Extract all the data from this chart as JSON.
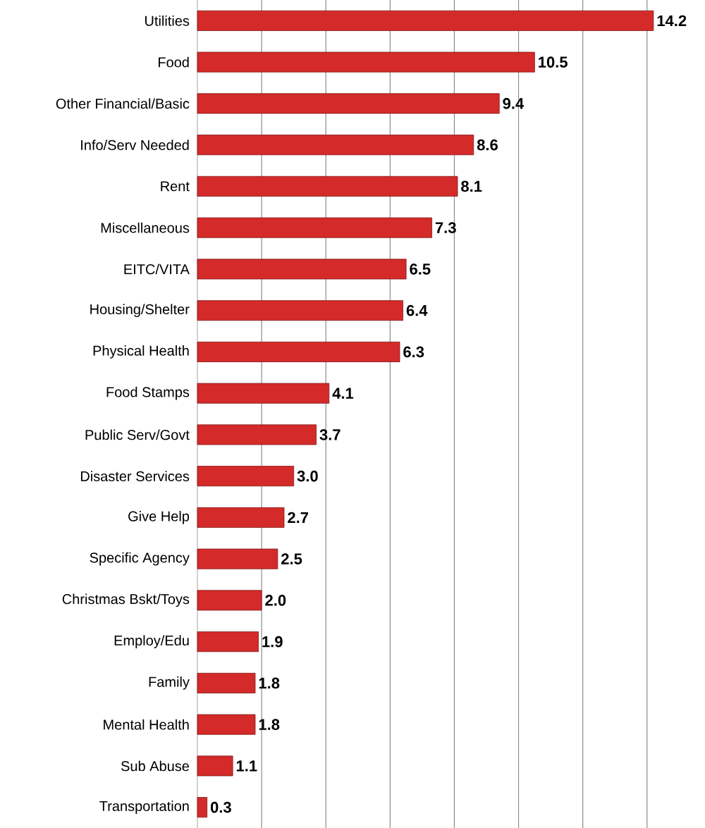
{
  "chart_data": {
    "type": "bar",
    "orientation": "horizontal",
    "categories": [
      "Utilities",
      "Food",
      "Other Financial/Basic",
      "Info/Serv Needed",
      "Rent",
      "Miscellaneous",
      "EITC/VITA",
      "Housing/Shelter",
      "Physical Health",
      "Food Stamps",
      "Public Serv/Govt",
      "Disaster Services",
      "Give Help",
      "Specific Agency",
      "Christmas Bskt/Toys",
      "Employ/Edu",
      "Family",
      "Mental Health",
      "Sub Abuse",
      "Transportation"
    ],
    "values": [
      14.2,
      10.5,
      9.4,
      8.6,
      8.1,
      7.3,
      6.5,
      6.4,
      6.3,
      4.1,
      3.7,
      3.0,
      2.7,
      2.5,
      2.0,
      1.9,
      1.8,
      1.8,
      1.1,
      0.3
    ],
    "value_labels": [
      "14.2",
      "10.5",
      "9.4",
      "8.6",
      "8.1",
      "7.3",
      "6.5",
      "6.4",
      "6.3",
      "4.1",
      "3.7",
      "3.0",
      "2.7",
      "2.5",
      "2.0",
      "1.9",
      "1.8",
      "1.8",
      "1.1",
      "0.3"
    ],
    "color": "#d42a2a",
    "xticks": [
      {
        "value": 2,
        "label": null
      },
      {
        "value": 4,
        "label": null
      },
      {
        "value": 6,
        "label": null
      },
      {
        "value": 8,
        "label": null
      },
      {
        "value": 10,
        "label": null
      },
      {
        "value": 12,
        "label": null
      },
      {
        "value": 14,
        "label": null
      }
    ],
    "tick_labels": "y",
    "grid": "x"
  }
}
